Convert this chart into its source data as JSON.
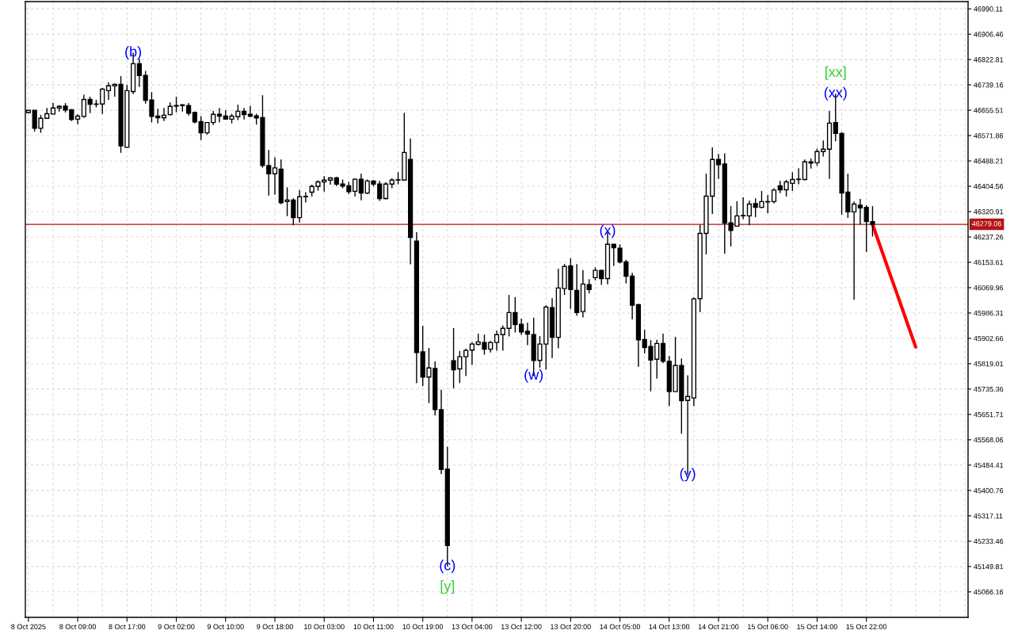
{
  "chart_data": {
    "type": "candlestick",
    "color": "#000000",
    "categories": [
      "8 Oct 2025",
      null,
      null,
      null,
      null,
      null,
      null,
      null,
      "8 Oct 09:00",
      null,
      null,
      null,
      null,
      null,
      null,
      null,
      "8 Oct 17:00",
      null,
      null,
      null,
      null,
      null,
      null,
      null,
      "9 Oct 02:00",
      null,
      null,
      null,
      null,
      null,
      null,
      null,
      "9 Oct 10:00",
      null,
      null,
      null,
      null,
      null,
      null,
      null,
      "9 Oct 18:00",
      null,
      null,
      null,
      null,
      null,
      null,
      null,
      "10 Oct 03:00",
      null,
      null,
      null,
      null,
      null,
      null,
      null,
      "10 Oct 11:00",
      null,
      null,
      null,
      null,
      null,
      null,
      null,
      "10 Oct 19:00",
      null,
      null,
      null,
      null,
      null,
      null,
      null,
      "13 Oct 04:00",
      null,
      null,
      null,
      null,
      null,
      null,
      null,
      "13 Oct 12:00",
      null,
      null,
      null,
      null,
      null,
      null,
      null,
      "13 Oct 20:00",
      null,
      null,
      null,
      null,
      null,
      null,
      null,
      "14 Oct 05:00",
      null,
      null,
      null,
      null,
      null,
      null,
      null,
      "14 Oct 13:00",
      null,
      null,
      null,
      null,
      null,
      null,
      null,
      "14 Oct 21:00",
      null,
      null,
      null,
      null,
      null,
      null,
      null,
      "15 Oct 06:00",
      null,
      null,
      null,
      null,
      null,
      null,
      null,
      "15 Oct 14:00",
      null,
      null,
      null,
      null,
      null,
      null,
      null,
      "15 Oct 22:00",
      null,
      null,
      null,
      null,
      null,
      null,
      null,
      null,
      null,
      null,
      null,
      null,
      null,
      null,
      null,
      null
    ],
    "ohlc": [
      [
        46648,
        46656,
        46646,
        46655
      ],
      [
        46655,
        46656,
        46585,
        46596
      ],
      [
        46596,
        46640,
        46581,
        46629
      ],
      [
        46629,
        46663,
        46627,
        46644
      ],
      [
        46643,
        46679,
        46642,
        46663
      ],
      [
        46663,
        46672,
        46651,
        46668
      ],
      [
        46669,
        46679,
        46648,
        46656
      ],
      [
        46657,
        46659,
        46620,
        46625
      ],
      [
        46626,
        46642,
        46609,
        46636
      ],
      [
        46635,
        46707,
        46630,
        46691
      ],
      [
        46691,
        46700,
        46646,
        46675
      ],
      [
        46675,
        46690,
        46665,
        46676
      ],
      [
        46676,
        46729,
        46643,
        46725
      ],
      [
        46720,
        46747,
        46690,
        46736
      ],
      [
        46736,
        46744,
        46700,
        46741
      ],
      [
        46741,
        46768,
        46515,
        46538
      ],
      [
        46533,
        46739,
        46531,
        46720
      ],
      [
        46717,
        46845,
        46709,
        46809
      ],
      [
        46809,
        46825,
        46732,
        46770
      ],
      [
        46770,
        46785,
        46677,
        46688
      ],
      [
        46689,
        46715,
        46615,
        46635
      ],
      [
        46636,
        46660,
        46612,
        46631
      ],
      [
        46631,
        46663,
        46620,
        46639
      ],
      [
        46641,
        46681,
        46639,
        46668
      ],
      [
        46671,
        46700,
        46649,
        46669
      ],
      [
        46671,
        46676,
        46651,
        46673
      ],
      [
        46671,
        46679,
        46638,
        46646
      ],
      [
        46648,
        46651,
        46612,
        46617
      ],
      [
        46618,
        46636,
        46557,
        46581
      ],
      [
        46581,
        46616,
        46575,
        46615
      ],
      [
        46615,
        46653,
        46607,
        46642
      ],
      [
        46642,
        46663,
        46615,
        46636
      ],
      [
        46636,
        46656,
        46625,
        46626
      ],
      [
        46626,
        46644,
        46612,
        46636
      ],
      [
        46634,
        46674,
        46623,
        46652
      ],
      [
        46652,
        46663,
        46625,
        46641
      ],
      [
        46642,
        46670,
        46632,
        46636
      ],
      [
        46637,
        46644,
        46608,
        46630
      ],
      [
        46631,
        46705,
        46466,
        46473
      ],
      [
        46473,
        46524,
        46374,
        46446
      ],
      [
        46446,
        46500,
        46377,
        46465
      ],
      [
        46461,
        46493,
        46345,
        46350
      ],
      [
        46354,
        46401,
        46306,
        46359
      ],
      [
        46359,
        46365,
        46276,
        46301
      ],
      [
        46301,
        46392,
        46285,
        46370
      ],
      [
        46370,
        46385,
        46351,
        46371
      ],
      [
        46385,
        46410,
        46371,
        46404
      ],
      [
        46404,
        46424,
        46390,
        46419
      ],
      [
        46419,
        46438,
        46387,
        46425
      ],
      [
        46425,
        46435,
        46410,
        46432
      ],
      [
        46432,
        46436,
        46405,
        46412
      ],
      [
        46412,
        46427,
        46398,
        46405
      ],
      [
        46406,
        46419,
        46379,
        46387
      ],
      [
        46388,
        46431,
        46371,
        46428
      ],
      [
        46428,
        46446,
        46358,
        46382
      ],
      [
        46382,
        46427,
        46379,
        46422
      ],
      [
        46422,
        46425,
        46404,
        46412
      ],
      [
        46412,
        46422,
        46356,
        46364
      ],
      [
        46364,
        46418,
        46361,
        46412
      ],
      [
        46412,
        46431,
        46398,
        46425
      ],
      [
        46425,
        46451,
        46411,
        46426
      ],
      [
        46425,
        46647,
        46424,
        46516
      ],
      [
        46493,
        46562,
        46147,
        46236
      ],
      [
        46224,
        46253,
        45755,
        45856
      ],
      [
        45858,
        45944,
        45745,
        45775
      ],
      [
        45775,
        45871,
        45689,
        45805
      ],
      [
        45803,
        45827,
        45648,
        45668
      ],
      [
        45667,
        45733,
        45455,
        45470
      ],
      [
        45471,
        45545,
        45150,
        45219
      ],
      [
        45829,
        45937,
        45738,
        45799
      ],
      [
        45802,
        45861,
        45755,
        45842
      ],
      [
        45842,
        45869,
        45778,
        45863
      ],
      [
        45864,
        45890,
        45815,
        45884
      ],
      [
        45883,
        45918,
        45880,
        45891
      ],
      [
        45889,
        45915,
        45849,
        45867
      ],
      [
        45867,
        45894,
        45856,
        45889
      ],
      [
        45889,
        45928,
        45862,
        45915
      ],
      [
        45915,
        45945,
        45862,
        45936
      ],
      [
        45936,
        46046,
        45909,
        45988
      ],
      [
        45988,
        46039,
        45922,
        45948
      ],
      [
        45949,
        45968,
        45914,
        45924
      ],
      [
        45926,
        45954,
        45880,
        45917
      ],
      [
        45915,
        45971,
        45779,
        45830
      ],
      [
        45830,
        45910,
        45806,
        45884
      ],
      [
        45884,
        46012,
        45799,
        46006
      ],
      [
        46004,
        46035,
        45838,
        45906
      ],
      [
        45906,
        46133,
        45870,
        46069
      ],
      [
        46067,
        46148,
        46046,
        46140
      ],
      [
        46142,
        46167,
        46000,
        46064
      ],
      [
        46061,
        46148,
        45978,
        45988
      ],
      [
        45991,
        46128,
        45972,
        46082
      ],
      [
        46080,
        46098,
        46051,
        46064
      ],
      [
        46103,
        46137,
        46094,
        46127
      ],
      [
        46127,
        46129,
        46079,
        46100
      ],
      [
        46100,
        46256,
        46081,
        46213
      ],
      [
        46213,
        46214,
        46142,
        46202
      ],
      [
        46200,
        46213,
        46150,
        46155
      ],
      [
        46155,
        46162,
        46084,
        46108
      ],
      [
        46108,
        46119,
        45965,
        46012
      ],
      [
        46014,
        46017,
        45809,
        45898
      ],
      [
        45899,
        45931,
        45853,
        45872
      ],
      [
        45876,
        45897,
        45728,
        45831
      ],
      [
        45834,
        45898,
        45770,
        45886
      ],
      [
        45886,
        45918,
        45821,
        45827
      ],
      [
        45827,
        45845,
        45679,
        45727
      ],
      [
        45727,
        45908,
        45726,
        45813
      ],
      [
        45813,
        45836,
        45588,
        45697
      ],
      [
        45698,
        45781,
        45453,
        45711
      ],
      [
        45706,
        46038,
        45679,
        46033
      ],
      [
        46034,
        46278,
        45989,
        46249
      ],
      [
        46249,
        46446,
        46180,
        46372
      ],
      [
        46372,
        46533,
        46313,
        46493
      ],
      [
        46493,
        46511,
        46429,
        46476
      ],
      [
        46478,
        46513,
        46182,
        46283
      ],
      [
        46284,
        46339,
        46206,
        46259
      ],
      [
        46273,
        46355,
        46272,
        46307
      ],
      [
        46307,
        46368,
        46296,
        46308
      ],
      [
        46307,
        46357,
        46276,
        46346
      ],
      [
        46347,
        46365,
        46303,
        46335
      ],
      [
        46335,
        46389,
        46332,
        46354
      ],
      [
        46353,
        46376,
        46316,
        46354
      ],
      [
        46354,
        46398,
        46348,
        46392
      ],
      [
        46406,
        46422,
        46382,
        46393
      ],
      [
        46393,
        46426,
        46371,
        46419
      ],
      [
        46414,
        46451,
        46389,
        46427
      ],
      [
        46427,
        46464,
        46411,
        46428
      ],
      [
        46427,
        46493,
        46424,
        46485
      ],
      [
        46485,
        46496,
        46463,
        46481
      ],
      [
        46482,
        46529,
        46472,
        46519
      ],
      [
        46519,
        46556,
        46503,
        46527
      ],
      [
        46527,
        46653,
        46429,
        46613
      ],
      [
        46615,
        46710,
        46553,
        46579
      ],
      [
        46579,
        46583,
        46311,
        46382
      ],
      [
        46385,
        46446,
        46300,
        46320
      ],
      [
        46320,
        46354,
        46030,
        46346
      ],
      [
        46342,
        46363,
        46278,
        46333
      ],
      [
        46335,
        46342,
        46188,
        46288
      ],
      [
        46288,
        46339,
        46239,
        46279
      ],
      null,
      null,
      null,
      null,
      null,
      null,
      null,
      null,
      null,
      null,
      null,
      null,
      null,
      null,
      null
    ],
    "series": [
      {
        "type": "line",
        "color": "#ff0000",
        "values": [
          null,
          null,
          null,
          null,
          null,
          null,
          null,
          null,
          null,
          null,
          null,
          null,
          null,
          null,
          null,
          null,
          null,
          null,
          null,
          null,
          null,
          null,
          null,
          null,
          null,
          null,
          null,
          null,
          null,
          null,
          null,
          null,
          null,
          null,
          null,
          null,
          null,
          null,
          null,
          null,
          null,
          null,
          null,
          null,
          null,
          null,
          null,
          null,
          null,
          null,
          null,
          null,
          null,
          null,
          null,
          null,
          null,
          null,
          null,
          null,
          null,
          null,
          null,
          null,
          null,
          null,
          null,
          null,
          null,
          null,
          null,
          null,
          null,
          null,
          null,
          null,
          null,
          null,
          null,
          null,
          null,
          null,
          null,
          null,
          null,
          null,
          null,
          null,
          null,
          null,
          null,
          null,
          null,
          null,
          null,
          null,
          null,
          null,
          null,
          null,
          null,
          null,
          null,
          null,
          null,
          null,
          null,
          null,
          null,
          null,
          null,
          null,
          null,
          null,
          null,
          null,
          null,
          null,
          null,
          null,
          null,
          null,
          null,
          null,
          null,
          null,
          null,
          null,
          null,
          null,
          null,
          null,
          null,
          null,
          null,
          null,
          null,
          46279,
          46221,
          46163,
          46105,
          46048,
          45990,
          45932,
          45874,
          null,
          null,
          null,
          null,
          null,
          null,
          null,
          null
        ]
      }
    ],
    "ylim": [
      44982,
      47014
    ],
    "yticks": [
      46990.11,
      46906.46,
      46822.81,
      46739.16,
      46655.51,
      46571.86,
      46488.21,
      46404.56,
      46320.91,
      46237.26,
      46153.61,
      46069.96,
      45986.31,
      45902.66,
      45819.01,
      45735.36,
      45651.71,
      45568.06,
      45484.41,
      45400.76,
      45317.11,
      45233.46,
      45149.81,
      45066.16
    ],
    "grid": true,
    "ref_lines": [
      {
        "axis": "y",
        "value": 46279.06,
        "label": "46279.06",
        "color": "#b41414"
      }
    ],
    "annotations": [
      {
        "text": "(b)",
        "y": 46845
      },
      {
        "text": "(c)",
        "y": 45150
      },
      {
        "text": "[y]",
        "y": 45150
      },
      {
        "text": "(w)",
        "y": 45779
      },
      {
        "text": "(x)",
        "y": 46256
      },
      {
        "text": "(y)",
        "y": 45453
      },
      {
        "text": "(xx)",
        "y": 46710
      },
      {
        "text": "[xx]",
        "y": 46710
      }
    ]
  }
}
